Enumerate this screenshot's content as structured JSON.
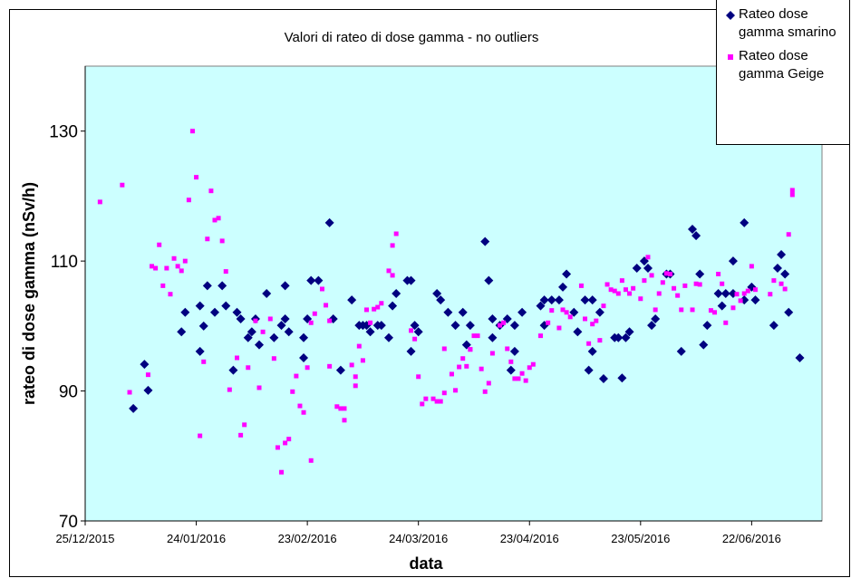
{
  "chart_data": {
    "type": "scatter",
    "title": "Valori di rateo di dose gamma - no outliers",
    "x_label": "data",
    "y_label": "rateo di dose gamma (nSv/h)",
    "xlim": [
      "2015-12-25",
      "2016-07-11"
    ],
    "xticks": [
      {
        "value": "2015-12-25",
        "label": "25/12/2015"
      },
      {
        "value": "2016-01-24",
        "label": "24/01/2016"
      },
      {
        "value": "2016-02-23",
        "label": "23/02/2016"
      },
      {
        "value": "2016-03-24",
        "label": "24/03/2016"
      },
      {
        "value": "2016-04-23",
        "label": "23/04/2016"
      },
      {
        "value": "2016-05-23",
        "label": "23/05/2016"
      },
      {
        "value": "2016-06-22",
        "label": "22/06/2016"
      }
    ],
    "ylim": [
      70,
      140
    ],
    "yticks": [
      70,
      90,
      110,
      130
    ],
    "grid": false,
    "legend": "top-right",
    "series": [
      {
        "name": "Rateo dose gamma smarino",
        "color": "#000080",
        "marker": "diamond",
        "x": [
          "2016-01-07",
          "2016-01-10",
          "2016-01-11",
          "2016-01-20",
          "2016-01-21",
          "2016-01-25",
          "2016-01-25",
          "2016-01-26",
          "2016-01-27",
          "2016-01-29",
          "2016-01-31",
          "2016-02-01",
          "2016-02-03",
          "2016-02-04",
          "2016-02-05",
          "2016-02-07",
          "2016-02-08",
          "2016-02-09",
          "2016-02-10",
          "2016-02-12",
          "2016-02-14",
          "2016-02-16",
          "2016-02-17",
          "2016-02-17",
          "2016-02-18",
          "2016-02-22",
          "2016-02-22",
          "2016-02-23",
          "2016-02-24",
          "2016-02-26",
          "2016-02-29",
          "2016-03-01",
          "2016-03-03",
          "2016-03-06",
          "2016-03-08",
          "2016-03-09",
          "2016-03-10",
          "2016-03-11",
          "2016-03-13",
          "2016-03-14",
          "2016-03-16",
          "2016-03-17",
          "2016-03-18",
          "2016-03-21",
          "2016-03-22",
          "2016-03-22",
          "2016-03-23",
          "2016-03-24",
          "2016-03-29",
          "2016-03-30",
          "2016-04-01",
          "2016-04-03",
          "2016-04-05",
          "2016-04-06",
          "2016-04-07",
          "2016-04-11",
          "2016-04-12",
          "2016-04-13",
          "2016-04-13",
          "2016-04-15",
          "2016-04-17",
          "2016-04-18",
          "2016-04-19",
          "2016-04-19",
          "2016-04-21",
          "2016-04-26",
          "2016-04-27",
          "2016-04-27",
          "2016-04-29",
          "2016-05-01",
          "2016-05-02",
          "2016-05-03",
          "2016-05-05",
          "2016-05-06",
          "2016-05-08",
          "2016-05-09",
          "2016-05-10",
          "2016-05-10",
          "2016-05-12",
          "2016-05-13",
          "2016-05-16",
          "2016-05-17",
          "2016-05-18",
          "2016-05-19",
          "2016-05-20",
          "2016-05-22",
          "2016-05-24",
          "2016-05-25",
          "2016-05-26",
          "2016-05-27",
          "2016-05-30",
          "2016-05-31",
          "2016-06-03",
          "2016-06-06",
          "2016-06-07",
          "2016-06-08",
          "2016-06-09",
          "2016-06-10",
          "2016-06-13",
          "2016-06-14",
          "2016-06-15",
          "2016-06-17",
          "2016-06-17",
          "2016-06-20",
          "2016-06-20",
          "2016-06-22",
          "2016-06-23",
          "2016-06-28",
          "2016-06-29",
          "2016-06-30",
          "2016-07-01",
          "2016-07-02",
          "2016-07-05"
        ],
        "values": [
          87.3,
          94.1,
          90.1,
          99.1,
          102.1,
          103.1,
          96.1,
          100,
          106.2,
          102.1,
          106.2,
          103.1,
          93.2,
          102.1,
          101.1,
          98.2,
          99.1,
          101.1,
          97.1,
          105,
          98.2,
          100.1,
          101.1,
          106.2,
          99.1,
          98.2,
          95.1,
          101.1,
          107,
          107,
          115.9,
          101.1,
          93.2,
          104,
          100.1,
          100.1,
          100.1,
          99.1,
          100.1,
          100.1,
          98.2,
          103.1,
          105,
          107,
          107,
          96.1,
          100.1,
          99.1,
          105,
          104,
          102.1,
          100.1,
          102.1,
          97.1,
          100.1,
          113,
          107,
          98.2,
          101.1,
          100.1,
          101.1,
          93.2,
          96.1,
          100.1,
          102.1,
          103.1,
          104,
          100.1,
          104,
          104,
          106,
          108,
          102.1,
          99.1,
          104,
          93.2,
          96.1,
          104,
          102.1,
          91.9,
          98.2,
          98.2,
          92,
          98.2,
          99.1,
          108.9,
          110,
          108.9,
          100.1,
          101.1,
          108,
          108,
          96.1,
          114.9,
          113.9,
          108,
          97.1,
          100.1,
          105,
          103.1,
          105,
          105,
          110,
          104,
          115.9,
          106,
          104,
          100.1,
          108.9,
          111,
          108,
          102.1,
          95.1
        ]
      },
      {
        "name": "Rateo dose gamma Geige",
        "color": "#ff00ff",
        "marker": "square",
        "x": [
          "2015-12-29",
          "2016-01-04",
          "2016-01-06",
          "2016-01-11",
          "2016-01-12",
          "2016-01-14",
          "2016-01-13",
          "2016-01-15",
          "2016-01-16",
          "2016-01-17",
          "2016-01-18",
          "2016-01-19",
          "2016-01-20",
          "2016-01-21",
          "2016-01-22",
          "2016-01-23",
          "2016-01-24",
          "2016-01-25",
          "2016-01-26",
          "2016-01-27",
          "2016-01-28",
          "2016-01-29",
          "2016-01-30",
          "2016-01-31",
          "2016-02-01",
          "2016-02-02",
          "2016-02-04",
          "2016-02-05",
          "2016-02-06",
          "2016-02-07",
          "2016-02-09",
          "2016-02-10",
          "2016-02-11",
          "2016-02-13",
          "2016-02-14",
          "2016-02-15",
          "2016-02-16",
          "2016-02-17",
          "2016-02-18",
          "2016-02-19",
          "2016-02-20",
          "2016-02-21",
          "2016-02-22",
          "2016-02-23",
          "2016-02-24",
          "2016-02-24",
          "2016-02-25",
          "2016-02-27",
          "2016-02-28",
          "2016-02-29",
          "2016-02-29",
          "2016-03-02",
          "2016-03-03",
          "2016-03-04",
          "2016-03-04",
          "2016-03-06",
          "2016-03-07",
          "2016-03-07",
          "2016-03-08",
          "2016-03-09",
          "2016-03-10",
          "2016-03-11",
          "2016-03-12",
          "2016-03-13",
          "2016-03-14",
          "2016-03-16",
          "2016-03-17",
          "2016-03-17",
          "2016-03-18",
          "2016-03-22",
          "2016-03-23",
          "2016-03-24",
          "2016-03-25",
          "2016-03-26",
          "2016-03-28",
          "2016-03-29",
          "2016-03-30",
          "2016-03-31",
          "2016-03-31",
          "2016-04-02",
          "2016-04-03",
          "2016-04-04",
          "2016-04-05",
          "2016-04-06",
          "2016-04-07",
          "2016-04-07",
          "2016-04-08",
          "2016-04-09",
          "2016-04-10",
          "2016-04-11",
          "2016-04-12",
          "2016-04-13",
          "2016-04-15",
          "2016-04-16",
          "2016-04-17",
          "2016-04-18",
          "2016-04-19",
          "2016-04-20",
          "2016-04-21",
          "2016-04-22",
          "2016-04-23",
          "2016-04-24",
          "2016-04-26",
          "2016-04-28",
          "2016-04-29",
          "2016-05-01",
          "2016-05-02",
          "2016-05-03",
          "2016-05-04",
          "2016-05-07",
          "2016-05-08",
          "2016-05-09",
          "2016-05-10",
          "2016-05-11",
          "2016-05-12",
          "2016-05-13",
          "2016-05-14",
          "2016-05-15",
          "2016-05-16",
          "2016-05-17",
          "2016-05-18",
          "2016-05-19",
          "2016-05-20",
          "2016-05-21",
          "2016-05-23",
          "2016-05-24",
          "2016-05-25",
          "2016-05-26",
          "2016-05-27",
          "2016-05-28",
          "2016-05-29",
          "2016-05-30",
          "2016-05-31",
          "2016-06-01",
          "2016-06-02",
          "2016-06-03",
          "2016-06-04",
          "2016-06-06",
          "2016-06-07",
          "2016-06-08",
          "2016-06-11",
          "2016-06-12",
          "2016-06-13",
          "2016-06-14",
          "2016-06-15",
          "2016-06-17",
          "2016-06-18",
          "2016-06-19",
          "2016-06-20",
          "2016-06-21",
          "2016-06-22",
          "2016-06-23",
          "2016-06-27",
          "2016-06-28",
          "2016-06-30",
          "2016-07-01",
          "2016-07-02",
          "2016-07-03",
          "2016-07-03"
        ],
        "values": [
          119.1,
          121.7,
          89.8,
          92.5,
          109.2,
          112.5,
          108.9,
          106.2,
          108.9,
          104.9,
          110.4,
          109.2,
          108.5,
          110,
          119.4,
          130,
          122.9,
          83.1,
          94.5,
          113.4,
          120.8,
          116.3,
          116.6,
          113.1,
          108.4,
          90.2,
          95.1,
          83.2,
          84.8,
          93.6,
          100.8,
          90.5,
          99.1,
          101.1,
          95,
          81.3,
          77.5,
          82,
          82.6,
          89.9,
          92.3,
          87.7,
          86.7,
          93.6,
          79.3,
          100.5,
          101.9,
          105.7,
          103.2,
          100.8,
          93.8,
          87.6,
          87.3,
          87.3,
          85.5,
          94,
          92.2,
          90.8,
          96.9,
          94.7,
          102.5,
          100.5,
          102.6,
          102.9,
          103.5,
          108.5,
          107.8,
          112.4,
          114.2,
          99.3,
          98,
          92.2,
          88,
          88.8,
          88.8,
          88.4,
          88.4,
          89.7,
          96.5,
          92.6,
          90.1,
          93.7,
          95,
          93.8,
          96.4,
          96.4,
          98.5,
          98.5,
          93.4,
          89.9,
          91.2,
          95.8,
          100.1,
          100.5,
          96.5,
          94.5,
          91.9,
          91.9,
          92.7,
          91.6,
          93.6,
          94.1,
          98.5,
          100.5,
          102.4,
          99.7,
          102.5,
          102.1,
          101.4,
          106.2,
          101.1,
          97.3,
          100.3,
          100.8,
          97.8,
          103.1,
          106.4,
          105.6,
          105.4,
          105,
          107,
          105.6,
          105,
          105.8,
          104.2,
          107,
          110.6,
          107.8,
          102.5,
          105,
          106.7,
          108.1,
          108,
          105.8,
          104.7,
          102.5,
          106.2,
          102.5,
          106.5,
          106.4,
          102.4,
          102.1,
          108,
          106.5,
          100.5,
          102.8,
          104.9,
          103.9,
          105,
          105.4,
          109.2,
          105.6,
          104.9,
          107,
          106.5,
          105.7,
          114.1,
          120.2,
          120.9
        ]
      }
    ]
  }
}
